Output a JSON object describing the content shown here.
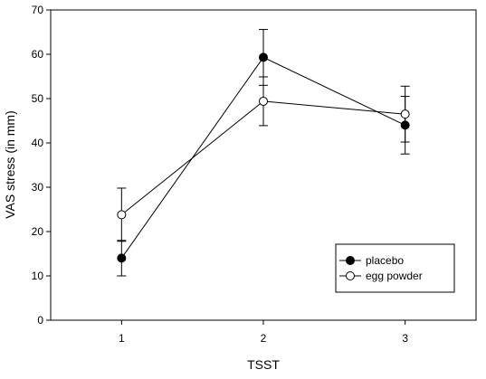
{
  "chart_data": {
    "type": "line",
    "title": "",
    "xlabel": "TSST",
    "ylabel": "VAS stress (in mm)",
    "x": [
      1,
      2,
      3
    ],
    "xticks": [
      "1",
      "2",
      "3"
    ],
    "xlim": [
      0.5,
      3.5
    ],
    "ylim": [
      0,
      70
    ],
    "yticks": [
      "0",
      "10",
      "20",
      "30",
      "40",
      "50",
      "60",
      "70"
    ],
    "grid": false,
    "legend_position": "bottom-right",
    "series": [
      {
        "name": "placebo",
        "marker": "filled-circle",
        "color": "#000000",
        "values": [
          14,
          59.3,
          44
        ],
        "error": [
          4,
          6.3,
          6.5
        ]
      },
      {
        "name": "egg powder",
        "marker": "open-circle",
        "color": "#000000",
        "values": [
          23.8,
          49.4,
          46.5
        ],
        "error": [
          6,
          5.5,
          6.3
        ]
      }
    ]
  }
}
